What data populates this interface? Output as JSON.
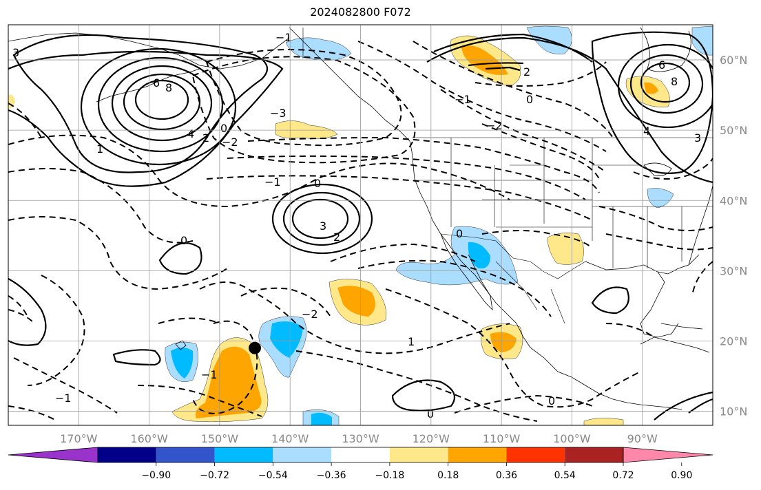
{
  "title": "2024082800 F072",
  "map": {
    "lon_range": [
      -180,
      -80
    ],
    "lat_range": [
      8,
      65
    ],
    "meridians": [
      -170,
      -160,
      -150,
      -140,
      -130,
      -120,
      -110,
      -100,
      -90
    ],
    "parallels": [
      10,
      20,
      30,
      40,
      50,
      60
    ],
    "lon_labels": [
      "170°W",
      "160°W",
      "150°W",
      "140°W",
      "130°W",
      "120°W",
      "110°W",
      "100°W",
      "90°W"
    ],
    "lat_labels": [
      "10°N",
      "20°N",
      "30°N",
      "40°N",
      "50°N",
      "60°N"
    ],
    "marker": {
      "lon": -145,
      "lat": 19,
      "color": "#000000"
    }
  },
  "colorbar": {
    "colors": [
      "#9933cc",
      "#000088",
      "#3355cc",
      "#00bbff",
      "#aaddff",
      "#ffffff",
      "#ffe88a",
      "#ffa500",
      "#ff3300",
      "#aa2222",
      "#ff88aa"
    ],
    "tick_labels": [
      "−0.90",
      "−0.72",
      "−0.54",
      "−0.36",
      "−0.18",
      "0.18",
      "0.36",
      "0.54",
      "0.72",
      "0.90"
    ]
  },
  "contour_labels": [
    "3",
    "6",
    "8",
    "4",
    "2",
    "1",
    "0",
    "−1",
    "−2",
    "−3",
    "0",
    "2",
    "3",
    "−1",
    "0",
    "2",
    "6",
    "8",
    "4",
    "3",
    "0",
    "−2",
    "−1",
    "0",
    "1",
    "−2",
    "−1",
    "0",
    "0",
    "−1"
  ]
}
